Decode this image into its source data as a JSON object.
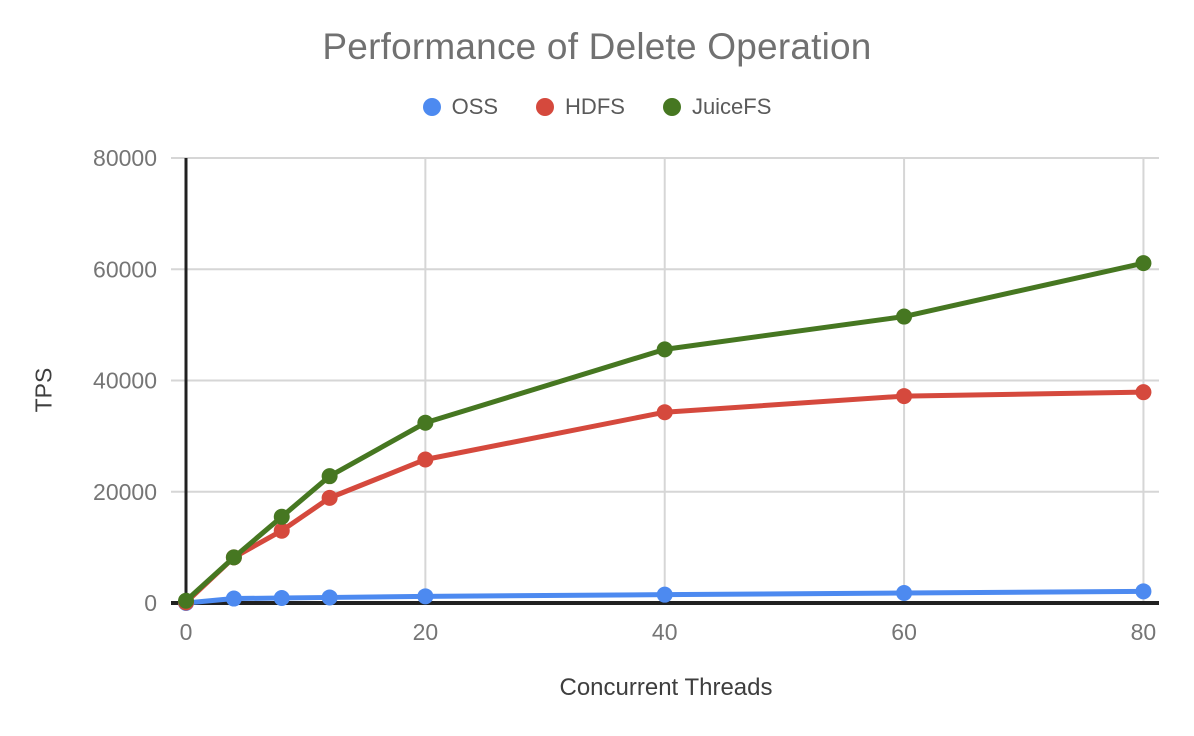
{
  "chart_data": {
    "type": "line",
    "title": "Performance of Delete Operation",
    "xlabel": "Concurrent Threads",
    "ylabel": "TPS",
    "x": [
      0,
      4,
      8,
      12,
      20,
      40,
      60,
      80
    ],
    "series": [
      {
        "name": "OSS",
        "color": "#4d8af0",
        "values": [
          0,
          800,
          900,
          1000,
          1200,
          1500,
          1800,
          2100
        ]
      },
      {
        "name": "HDFS",
        "color": "#d5493d",
        "values": [
          100,
          8200,
          13000,
          18900,
          25800,
          34300,
          37200,
          37900
        ]
      },
      {
        "name": "JuiceFS",
        "color": "#467721",
        "values": [
          400,
          8200,
          15500,
          22800,
          32400,
          45600,
          51500,
          61100
        ]
      }
    ],
    "xlim": [
      0,
      81.3
    ],
    "ylim": [
      0,
      80000
    ],
    "x_ticks": [
      0,
      20,
      40,
      60,
      80
    ],
    "y_ticks": [
      0,
      20000,
      40000,
      60000,
      80000
    ],
    "grid": true,
    "legend_position": "top",
    "point_radius": 8,
    "line_width": 5
  },
  "style": {
    "grid_color": "#d6d6d6",
    "axis_line_color": "#212121",
    "tick_label_color": "#757575",
    "title_color": "#717171",
    "axis_title_color": "#3e3e3e",
    "background": "#ffffff"
  }
}
